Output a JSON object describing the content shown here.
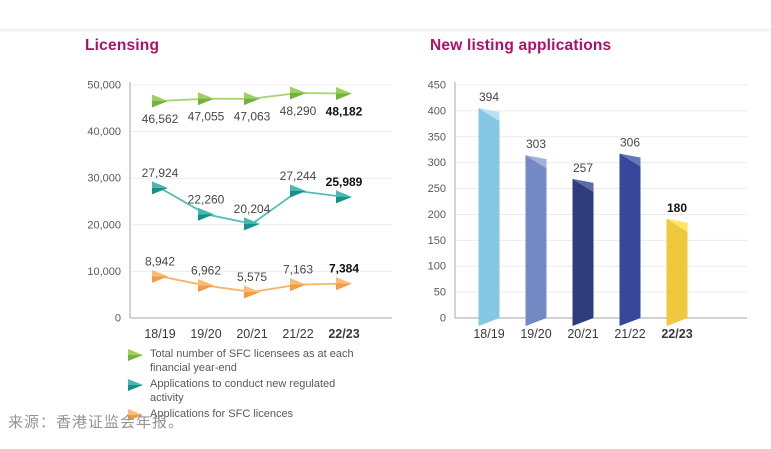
{
  "page": {
    "source_note": "来源：香港证监会年报。",
    "accent_color": "#b00f68",
    "background": "#ffffff"
  },
  "chart_data": [
    {
      "type": "line",
      "title": "Licensing",
      "categories": [
        "18/19",
        "19/20",
        "20/21",
        "21/22",
        "22/23"
      ],
      "bold_last": true,
      "ylim": [
        0,
        50000
      ],
      "y_ticks": [
        "50,000",
        "40,000",
        "30,000",
        "20,000",
        "10,000",
        "0"
      ],
      "grid": true,
      "legend_position": "bottom",
      "series": [
        {
          "name": "Total number of SFC licensees as at each financial year-end",
          "values": [
            46562,
            47055,
            47063,
            48290,
            48182
          ],
          "labels": [
            "46,562",
            "47,055",
            "47,063",
            "48,290",
            "48,182"
          ],
          "label_side": "below",
          "marker_top": "#9fd05f",
          "marker_bottom": "#71b33c",
          "line_color": "#a9d26f"
        },
        {
          "name": "Applications to conduct new regulated activity",
          "values": [
            27924,
            22260,
            20204,
            27244,
            25989
          ],
          "labels": [
            "27,924",
            "22,260",
            "20,204",
            "27,244",
            "25,989"
          ],
          "label_side": "above",
          "marker_top": "#49b8b1",
          "marker_bottom": "#14918b",
          "line_color": "#52bcb5"
        },
        {
          "name": "Applications for SFC licences",
          "values": [
            8942,
            6962,
            5575,
            7163,
            7384
          ],
          "labels": [
            "8,942",
            "6,962",
            "5,575",
            "7,163",
            "7,384"
          ],
          "label_side": "above",
          "marker_top": "#f9bc71",
          "marker_bottom": "#f29b44",
          "line_color": "#f7b468"
        }
      ]
    },
    {
      "type": "bar",
      "title": "New listing applications",
      "categories": [
        "18/19",
        "19/20",
        "20/21",
        "21/22",
        "22/23"
      ],
      "values": [
        394,
        303,
        257,
        306,
        180
      ],
      "labels": [
        "394",
        "303",
        "257",
        "306",
        "180"
      ],
      "bold_last": true,
      "ylim": [
        0,
        450
      ],
      "y_ticks": [
        "450",
        "400",
        "350",
        "300",
        "250",
        "200",
        "150",
        "100",
        "50",
        "0"
      ],
      "grid": true,
      "bar_colors": [
        {
          "body": "#85c8e6",
          "light": "#b9e2f3"
        },
        {
          "body": "#7389c3",
          "light": "#a2b1d8"
        },
        {
          "body": "#303d7d",
          "light": "#5e6ba6"
        },
        {
          "body": "#36479c",
          "light": "#6776b6"
        },
        {
          "body": "#eec93e",
          "light": "#ffe55e"
        }
      ]
    }
  ],
  "style": {
    "grid_color": "#ececec",
    "axis_color": "#b8b8b8",
    "tick_label_color": "#595959",
    "x_label_color": "#3a3a3a",
    "value_label_color": "#474747",
    "bold_label_color": "#111111"
  }
}
